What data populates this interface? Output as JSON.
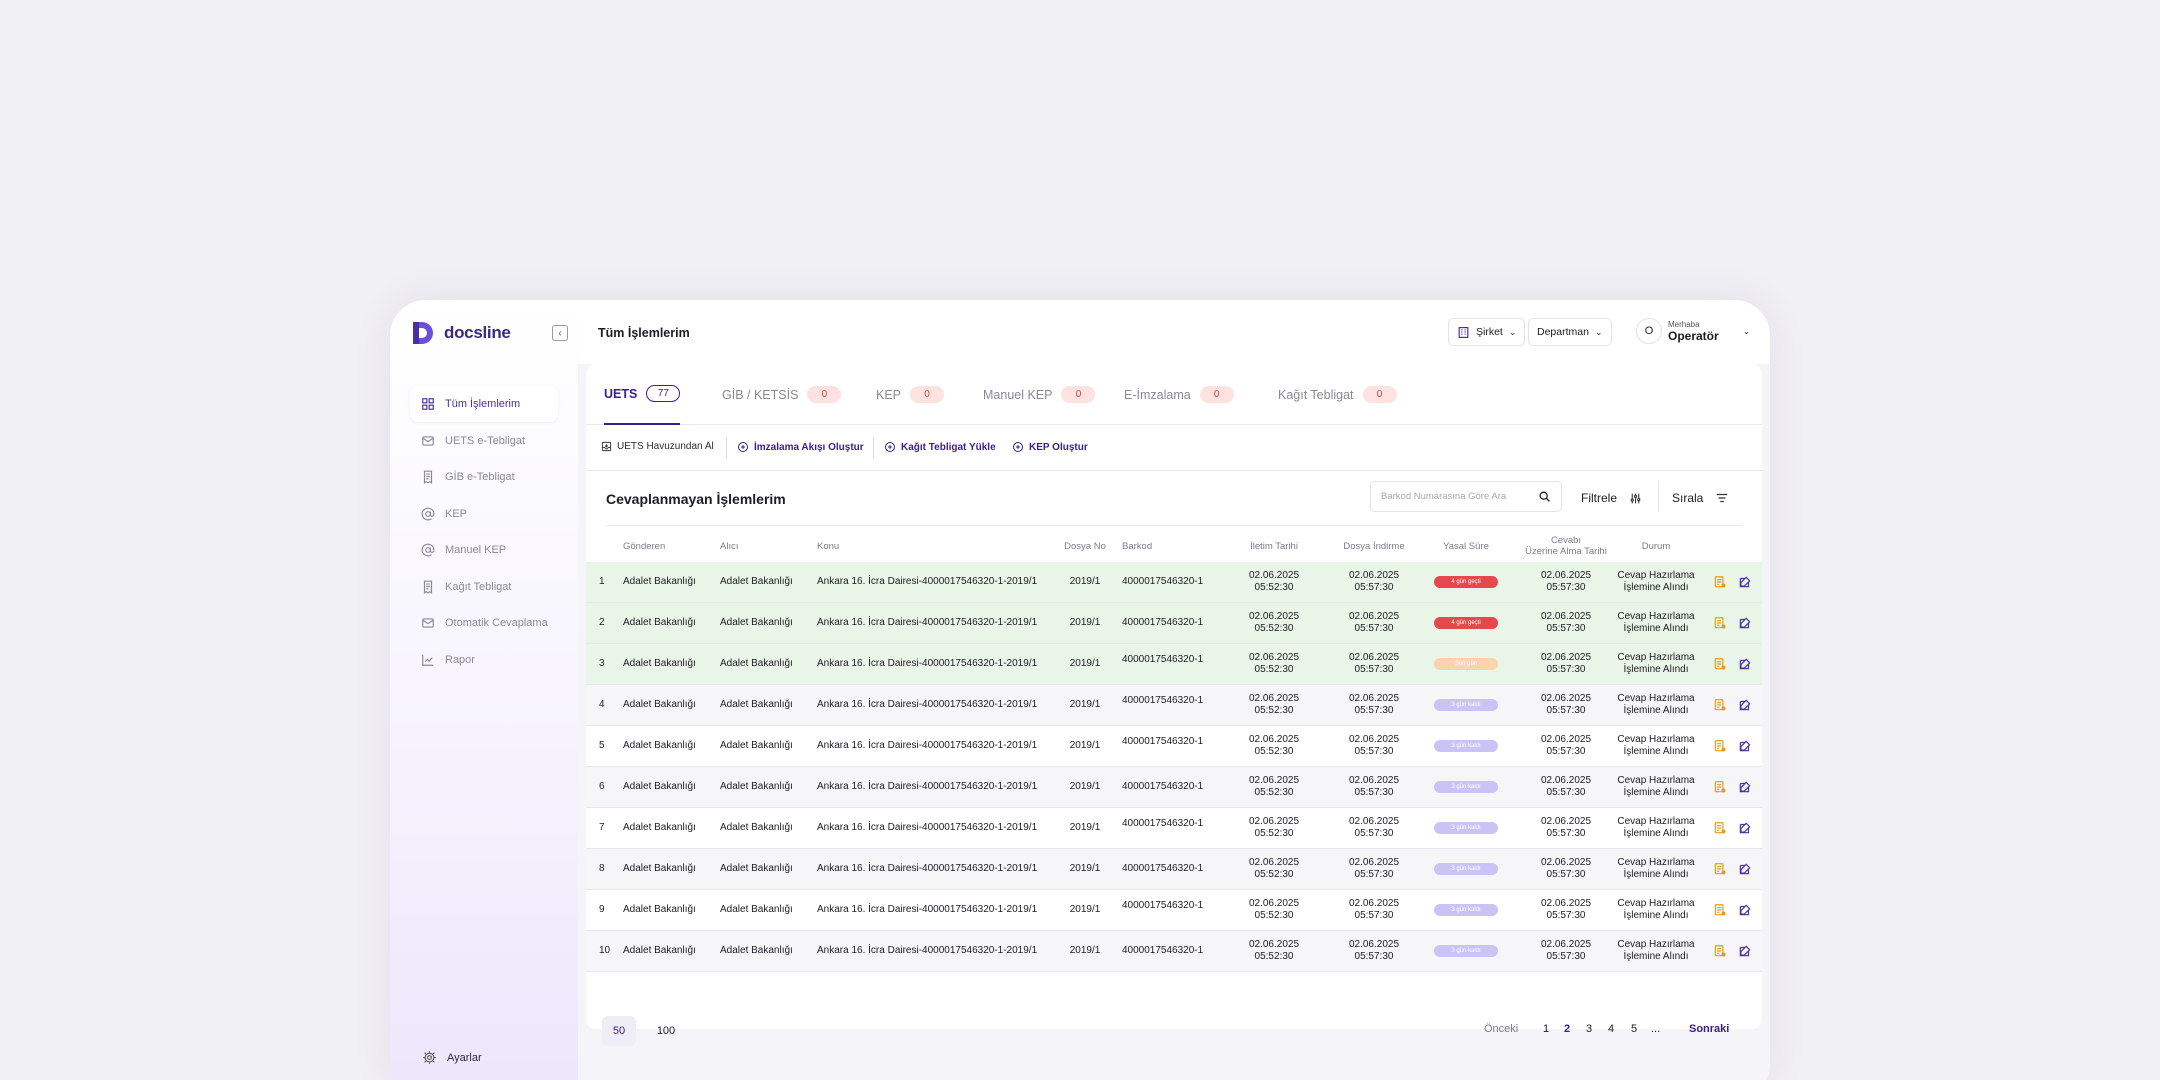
{
  "brand": {
    "name": "docsline"
  },
  "sidebar": {
    "items": [
      {
        "label": "Tüm İşlemlerim",
        "icon": "grid-icon",
        "active": true
      },
      {
        "label": "UETS e-Tebligat",
        "icon": "mail-icon"
      },
      {
        "label": "GİB e-Tebligat",
        "icon": "receipt-icon"
      },
      {
        "label": "KEP",
        "icon": "at-icon"
      },
      {
        "label": "Manuel KEP",
        "icon": "at-icon"
      },
      {
        "label": "Kağıt Tebligat",
        "icon": "receipt-icon"
      },
      {
        "label": "Otomatik Cevaplama",
        "icon": "mail-icon"
      },
      {
        "label": "Rapor",
        "icon": "chart-icon"
      }
    ],
    "settings_label": "Ayarlar"
  },
  "header": {
    "title": "Tüm İşlemlerim",
    "company_label": "Şirket",
    "department_label": "Departman",
    "greeting": "Merhaba",
    "user_name": "Operatör",
    "avatar_initial": "O"
  },
  "tabs": [
    {
      "label": "UETS",
      "count": "77",
      "active": true
    },
    {
      "label": "GİB / KETSİS",
      "count": "0"
    },
    {
      "label": "KEP",
      "count": "0"
    },
    {
      "label": "Manuel KEP",
      "count": "0"
    },
    {
      "label": "E-İmzalama",
      "count": "0"
    },
    {
      "label": "Kağıt Tebligat",
      "count": "0"
    }
  ],
  "actions": {
    "pool": "UETS Havuzundan Al",
    "signature_flow": "İmzalama Akışı Oluştur",
    "upload_paper": "Kağıt Tebligat Yükle",
    "create_kep": "KEP Oluştur"
  },
  "section": {
    "title": "Cevaplanmayan İşlemlerim",
    "search_placeholder": "Barkod Numarasına Göre Ara",
    "filter_label": "Filtrele",
    "sort_label": "Sırala"
  },
  "columns": {
    "sender": "Gönderen",
    "receiver": "Alıcı",
    "subject": "Konu",
    "file_no": "Dosya No",
    "barcode": "Barkod",
    "sent_date": "İletim Tarihi",
    "download": "Dosya İndirme",
    "legal_time": "Yasal Süre",
    "answer_date_1": "Cevabı",
    "answer_date_2": "Üzerine Alma Tarihi",
    "status": "Durum"
  },
  "colors": {
    "accent": "#3a1d8f",
    "red_pill": "#e5484d",
    "orange_pill": "#fbd3ac",
    "purple_pill": "#c9c4f5",
    "green_row": "#e9f5e6"
  },
  "rows": [
    {
      "no": "1",
      "sender": "Adalet Bakanlığı",
      "receiver": "Adalet Bakanlığı",
      "subject": "Ankara 16. İcra Dairesi-4000017546320-1-2019/1",
      "file_no": "2019/1",
      "barcode": "4000017546320-1",
      "sent_date": "02.06.2025",
      "sent_time": "05:52:30",
      "dl_date": "02.06.2025",
      "dl_time": "05:57:30",
      "legal": "4 gün geçti",
      "legal_color": "red",
      "ans_date": "02.06.2025",
      "ans_time": "05:57:30",
      "status_1": "Cevap Hazırlama",
      "status_2": "İşlemine Alındı",
      "row_color": "green"
    },
    {
      "no": "2",
      "sender": "Adalet Bakanlığı",
      "receiver": "Adalet Bakanlığı",
      "subject": "Ankara 16. İcra Dairesi-4000017546320-1-2019/1",
      "file_no": "2019/1",
      "barcode": "4000017546320-1",
      "sent_date": "02.06.2025",
      "sent_time": "05:52:30",
      "dl_date": "02.06.2025",
      "dl_time": "05:57:30",
      "legal": "4 gün geçti",
      "legal_color": "red",
      "ans_date": "02.06.2025",
      "ans_time": "05:57:30",
      "status_1": "Cevap Hazırlama",
      "status_2": "İşlemine Alındı",
      "row_color": "green"
    },
    {
      "no": "3",
      "sender": "Adalet Bakanlığı",
      "receiver": "Adalet Bakanlığı",
      "subject": "Ankara 16. İcra Dairesi-4000017546320-1-2019/1",
      "file_no": "2019/1",
      "barcode": "4000017546320-1",
      "sent_date": "02.06.2025",
      "sent_time": "05:52:30",
      "dl_date": "02.06.2025",
      "dl_time": "05:57:30",
      "legal": "Son gün",
      "legal_color": "orange",
      "ans_date": "02.06.2025",
      "ans_time": "05:57:30",
      "status_1": "Cevap Hazırlama",
      "status_2": "İşlemine Alındı",
      "row_color": "green"
    },
    {
      "no": "4",
      "sender": "Adalet Bakanlığı",
      "receiver": "Adalet Bakanlığı",
      "subject": "Ankara 16. İcra Dairesi-4000017546320-1-2019/1",
      "file_no": "2019/1",
      "barcode": "4000017546320-1",
      "sent_date": "02.06.2025",
      "sent_time": "05:52:30",
      "dl_date": "02.06.2025",
      "dl_time": "05:57:30",
      "legal": "3 gün kaldı",
      "legal_color": "purple",
      "ans_date": "02.06.2025",
      "ans_time": "05:57:30",
      "status_1": "Cevap Hazırlama",
      "status_2": "İşlemine Alındı",
      "row_color": "gray"
    },
    {
      "no": "5",
      "sender": "Adalet Bakanlığı",
      "receiver": "Adalet Bakanlığı",
      "subject": "Ankara 16. İcra Dairesi-4000017546320-1-2019/1",
      "file_no": "2019/1",
      "barcode": "4000017546320-1",
      "sent_date": "02.06.2025",
      "sent_time": "05:52:30",
      "dl_date": "02.06.2025",
      "dl_time": "05:57:30",
      "legal": "3 gün kaldı",
      "legal_color": "purple",
      "ans_date": "02.06.2025",
      "ans_time": "05:57:30",
      "status_1": "Cevap Hazırlama",
      "status_2": "İşlemine Alındı",
      "row_color": "white"
    },
    {
      "no": "6",
      "sender": "Adalet Bakanlığı",
      "receiver": "Adalet Bakanlığı",
      "subject": "Ankara 16. İcra Dairesi-4000017546320-1-2019/1",
      "file_no": "2019/1",
      "barcode": "4000017546320-1",
      "sent_date": "02.06.2025",
      "sent_time": "05:52:30",
      "dl_date": "02.06.2025",
      "dl_time": "05:57:30",
      "legal": "3 gün kaldı",
      "legal_color": "purple",
      "ans_date": "02.06.2025",
      "ans_time": "05:57:30",
      "status_1": "Cevap Hazırlama",
      "status_2": "İşlemine Alındı",
      "row_color": "gray"
    },
    {
      "no": "7",
      "sender": "Adalet Bakanlığı",
      "receiver": "Adalet Bakanlığı",
      "subject": "Ankara 16. İcra Dairesi-4000017546320-1-2019/1",
      "file_no": "2019/1",
      "barcode": "4000017546320-1",
      "sent_date": "02.06.2025",
      "sent_time": "05:52:30",
      "dl_date": "02.06.2025",
      "dl_time": "05:57:30",
      "legal": "3 gün kaldı",
      "legal_color": "purple",
      "ans_date": "02.06.2025",
      "ans_time": "05:57:30",
      "status_1": "Cevap Hazırlama",
      "status_2": "İşlemine Alındı",
      "row_color": "white"
    },
    {
      "no": "8",
      "sender": "Adalet Bakanlığı",
      "receiver": "Adalet Bakanlığı",
      "subject": "Ankara 16. İcra Dairesi-4000017546320-1-2019/1",
      "file_no": "2019/1",
      "barcode": "4000017546320-1",
      "sent_date": "02.06.2025",
      "sent_time": "05:52:30",
      "dl_date": "02.06.2025",
      "dl_time": "05:57:30",
      "legal": "3 gün kaldı",
      "legal_color": "purple",
      "ans_date": "02.06.2025",
      "ans_time": "05:57:30",
      "status_1": "Cevap Hazırlama",
      "status_2": "İşlemine Alındı",
      "row_color": "gray"
    },
    {
      "no": "9",
      "sender": "Adalet Bakanlığı",
      "receiver": "Adalet Bakanlığı",
      "subject": "Ankara 16. İcra Dairesi-4000017546320-1-2019/1",
      "file_no": "2019/1",
      "barcode": "4000017546320-1",
      "sent_date": "02.06.2025",
      "sent_time": "05:52:30",
      "dl_date": "02.06.2025",
      "dl_time": "05:57:30",
      "legal": "3 gün kaldı",
      "legal_color": "purple",
      "ans_date": "02.06.2025",
      "ans_time": "05:57:30",
      "status_1": "Cevap Hazırlama",
      "status_2": "İşlemine Alındı",
      "row_color": "white"
    },
    {
      "no": "10",
      "sender": "Adalet Bakanlığı",
      "receiver": "Adalet Bakanlığı",
      "subject": "Ankara 16. İcra Dairesi-4000017546320-1-2019/1",
      "file_no": "2019/1",
      "barcode": "4000017546320-1",
      "sent_date": "02.06.2025",
      "sent_time": "05:52:30",
      "dl_date": "02.06.2025",
      "dl_time": "05:57:30",
      "legal": "3 gün kaldı",
      "legal_color": "purple",
      "ans_date": "02.06.2025",
      "ans_time": "05:57:30",
      "status_1": "Cevap Hazırlama",
      "status_2": "İşlemine Alındı",
      "row_color": "gray"
    }
  ],
  "pagination": {
    "sizes": [
      "50",
      "100"
    ],
    "active_size": "50",
    "prev_label": "Önceki",
    "pages": [
      "1",
      "2",
      "3",
      "4",
      "5"
    ],
    "ellipsis": "...",
    "current_page": "2",
    "next_label": "Sonraki"
  }
}
